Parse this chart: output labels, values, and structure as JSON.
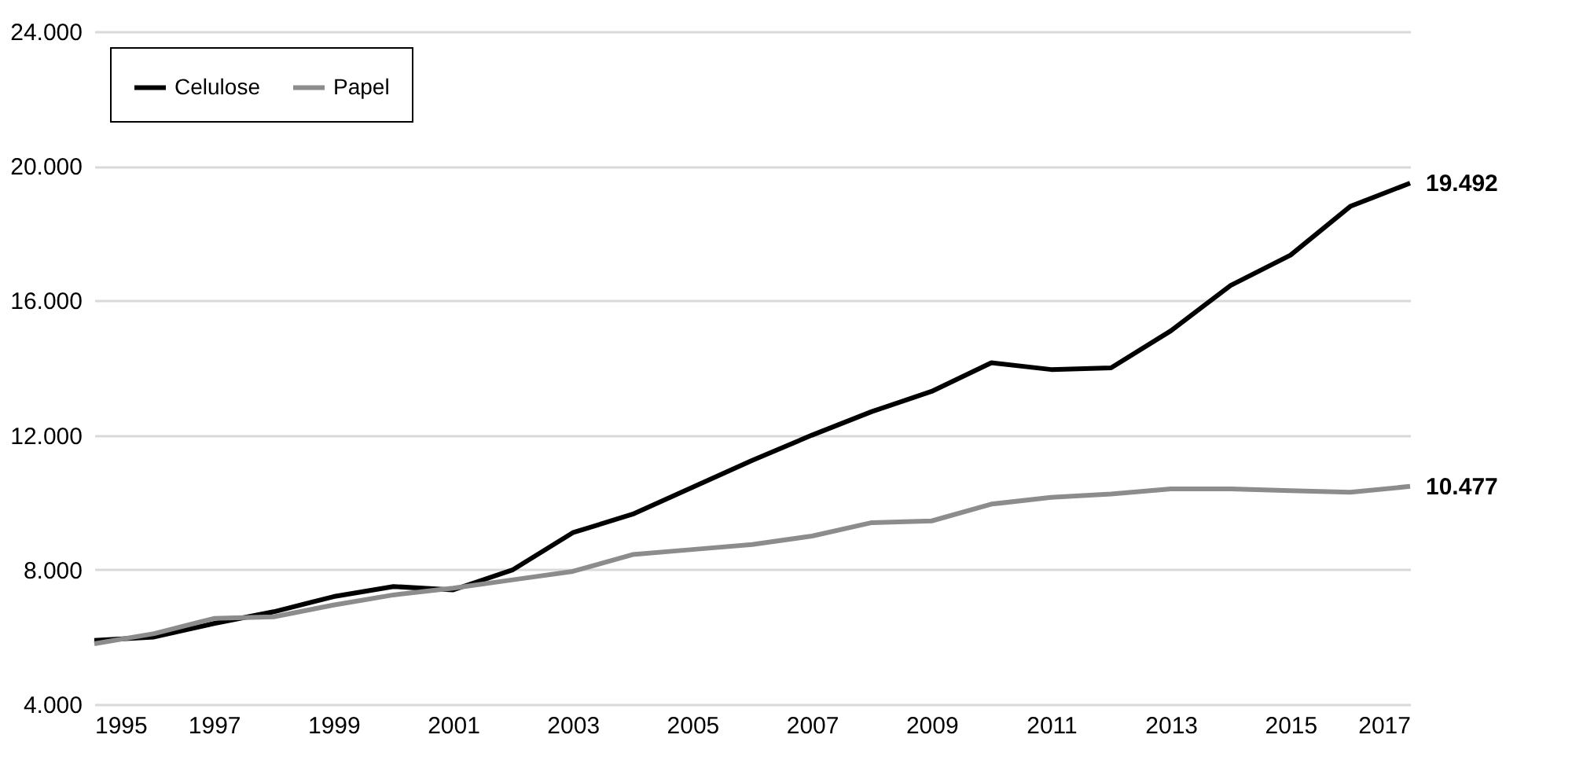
{
  "chart_data": {
    "type": "line",
    "x": [
      1995,
      1996,
      1997,
      1998,
      1999,
      2000,
      2001,
      2002,
      2003,
      2004,
      2005,
      2006,
      2007,
      2008,
      2009,
      2010,
      2011,
      2012,
      2013,
      2014,
      2015,
      2016,
      2017
    ],
    "series": [
      {
        "name": "Celulose",
        "color": "#000000",
        "values": [
          5900,
          6000,
          6400,
          6750,
          7200,
          7500,
          7400,
          8000,
          9100,
          9650,
          10450,
          11250,
          12000,
          12700,
          13300,
          14150,
          13950,
          14000,
          15100,
          16450,
          17350,
          18800,
          19492
        ],
        "value_labels": [
          null,
          null,
          null,
          null,
          null,
          null,
          null,
          null,
          null,
          null,
          null,
          null,
          null,
          null,
          null,
          null,
          null,
          null,
          null,
          null,
          null,
          null,
          "19.492"
        ]
      },
      {
        "name": "Papel",
        "color": "#8c8c8c",
        "values": [
          5800,
          6100,
          6550,
          6600,
          6950,
          7250,
          7450,
          7700,
          7950,
          8450,
          8600,
          8750,
          9000,
          9400,
          9450,
          9950,
          10150,
          10250,
          10400,
          10400,
          10350,
          10300,
          10477
        ],
        "value_labels": [
          null,
          null,
          null,
          null,
          null,
          null,
          null,
          null,
          null,
          null,
          null,
          null,
          null,
          null,
          null,
          null,
          null,
          null,
          null,
          null,
          null,
          null,
          "10.477"
        ]
      }
    ],
    "xlim": [
      1995,
      2017
    ],
    "xticks": [
      1995,
      1997,
      1999,
      2001,
      2003,
      2005,
      2007,
      2009,
      2011,
      2013,
      2015,
      2017
    ],
    "ylim": [
      4000,
      24000
    ],
    "yticks": [
      {
        "value": 4000,
        "label": "4.000"
      },
      {
        "value": 8000,
        "label": "8.000"
      },
      {
        "value": 12000,
        "label": "12.000"
      },
      {
        "value": 16000,
        "label": "16.000"
      },
      {
        "value": 20000,
        "label": "20.000"
      },
      {
        "value": 24000,
        "label": "24.000"
      }
    ],
    "grid": "y",
    "legend": "top left",
    "marker": "none",
    "line_style": "solid"
  }
}
